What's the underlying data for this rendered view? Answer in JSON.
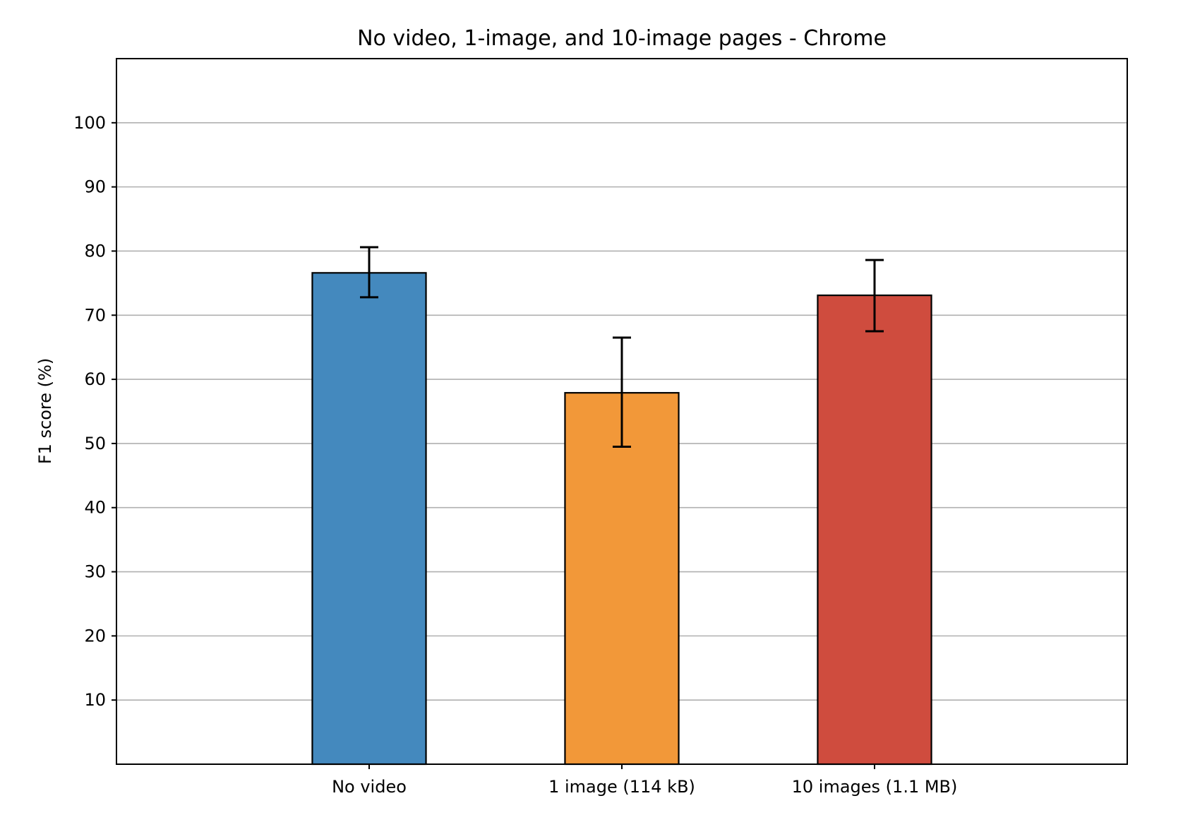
{
  "chart_data": {
    "type": "bar",
    "title": "No video, 1-image, and 10-image pages - Chrome",
    "xlabel": "",
    "ylabel": "F1 score (%)",
    "categories": [
      "No video",
      "1 image (114 kB)",
      "10 images (1.1 MB)"
    ],
    "values": [
      76.6,
      57.9,
      73.1
    ],
    "error_low": [
      72.8,
      49.5,
      67.5
    ],
    "error_high": [
      80.6,
      66.5,
      78.6
    ],
    "colors": [
      "#4489be",
      "#f29839",
      "#cf4c3e"
    ],
    "ylim": [
      0,
      110
    ],
    "yticks": [
      10,
      20,
      30,
      40,
      50,
      60,
      70,
      80,
      90,
      100
    ],
    "grid": "horizontal",
    "legend": "none"
  }
}
